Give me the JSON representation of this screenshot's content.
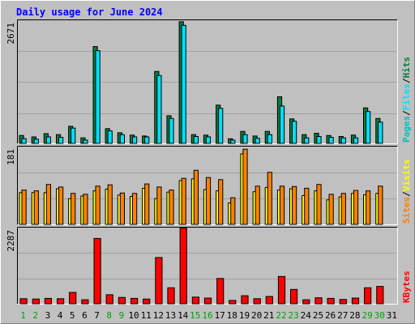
{
  "title": "Daily usage for June 2024",
  "colors": {
    "background": "#c0c0c0",
    "title": "#0000ff",
    "hits": "#008040",
    "files": "#00e0ff",
    "pages": "#00c0c0",
    "visits": "#ffff00",
    "sites": "#ff8000",
    "kbytes": "#ff0000",
    "weekend_day": "#00a000",
    "weekday": "#000000",
    "frame_dark": "#808080",
    "grid": "#a0a0a0"
  },
  "chart_data": [
    {
      "type": "bar",
      "panel": "hits-files-pages",
      "ymax_label": "2671",
      "ylim": [
        0,
        2671
      ],
      "legend": [
        {
          "name": "Pages",
          "color_key": "pages"
        },
        {
          "name": "Files",
          "color_key": "files"
        },
        {
          "name": "Hits",
          "color_key": "hits"
        }
      ],
      "legend_separator": "/",
      "categories": [
        "1",
        "2",
        "3",
        "4",
        "5",
        "6",
        "7",
        "8",
        "9",
        "10",
        "11",
        "12",
        "13",
        "14",
        "15",
        "16",
        "17",
        "18",
        "19",
        "20",
        "21",
        "22",
        "23",
        "24",
        "25",
        "26",
        "27",
        "28",
        "29",
        "30",
        "31"
      ],
      "series": [
        {
          "name": "Hits",
          "values": [
            170,
            140,
            210,
            190,
            370,
            120,
            2100,
            320,
            230,
            180,
            160,
            1560,
            600,
            2640,
            190,
            180,
            830,
            100,
            260,
            160,
            260,
            1010,
            530,
            190,
            220,
            170,
            150,
            180,
            770,
            540,
            0
          ]
        },
        {
          "name": "Files",
          "values": [
            100,
            90,
            140,
            130,
            330,
            70,
            2010,
            270,
            190,
            140,
            140,
            1470,
            540,
            2560,
            150,
            140,
            760,
            70,
            190,
            110,
            190,
            810,
            480,
            120,
            150,
            130,
            120,
            120,
            690,
            460,
            0
          ]
        }
      ]
    },
    {
      "type": "bar",
      "panel": "visits-sites",
      "ymax_label": "181",
      "ylim": [
        0,
        181
      ],
      "legend": [
        {
          "name": "Sites",
          "color_key": "sites"
        },
        {
          "name": "Visits",
          "color_key": "visits"
        }
      ],
      "legend_separator": "/",
      "categories": [
        "1",
        "2",
        "3",
        "4",
        "5",
        "6",
        "7",
        "8",
        "9",
        "10",
        "11",
        "12",
        "13",
        "14",
        "15",
        "16",
        "17",
        "18",
        "19",
        "20",
        "21",
        "22",
        "23",
        "24",
        "25",
        "26",
        "27",
        "28",
        "29",
        "30",
        "31"
      ],
      "series": [
        {
          "name": "Visits",
          "values": [
            74,
            74,
            74,
            83,
            60,
            66,
            78,
            82,
            68,
            65,
            84,
            60,
            75,
            102,
            106,
            81,
            78,
            50,
            164,
            76,
            86,
            80,
            83,
            67,
            78,
            57,
            64,
            72,
            69,
            72,
            0
          ]
        },
        {
          "name": "Sites",
          "values": [
            80,
            78,
            93,
            87,
            72,
            70,
            89,
            92,
            73,
            72,
            94,
            87,
            80,
            107,
            126,
            109,
            104,
            62,
            175,
            89,
            121,
            89,
            88,
            84,
            93,
            70,
            72,
            79,
            78,
            89,
            0
          ]
        }
      ]
    },
    {
      "type": "bar",
      "panel": "kbytes",
      "ymax_label": "2287",
      "ylim": [
        0,
        2287
      ],
      "legend": [
        {
          "name": "KBytes",
          "color_key": "kbytes"
        }
      ],
      "categories": [
        "1",
        "2",
        "3",
        "4",
        "5",
        "6",
        "7",
        "8",
        "9",
        "10",
        "11",
        "12",
        "13",
        "14",
        "15",
        "16",
        "17",
        "18",
        "19",
        "20",
        "21",
        "22",
        "23",
        "24",
        "25",
        "26",
        "27",
        "28",
        "29",
        "30",
        "31"
      ],
      "series": [
        {
          "name": "KBytes",
          "values": [
            150,
            140,
            160,
            150,
            340,
            120,
            1960,
            270,
            190,
            160,
            140,
            1390,
            480,
            2280,
            200,
            170,
            760,
            100,
            240,
            150,
            220,
            820,
            430,
            120,
            180,
            160,
            130,
            170,
            480,
            520,
            0
          ]
        }
      ]
    }
  ],
  "days": [
    {
      "label": "1",
      "weekend": true
    },
    {
      "label": "2",
      "weekend": true
    },
    {
      "label": "3",
      "weekend": false
    },
    {
      "label": "4",
      "weekend": false
    },
    {
      "label": "5",
      "weekend": false
    },
    {
      "label": "6",
      "weekend": false
    },
    {
      "label": "7",
      "weekend": false
    },
    {
      "label": "8",
      "weekend": true
    },
    {
      "label": "9",
      "weekend": true
    },
    {
      "label": "10",
      "weekend": false
    },
    {
      "label": "11",
      "weekend": false
    },
    {
      "label": "12",
      "weekend": false
    },
    {
      "label": "13",
      "weekend": false
    },
    {
      "label": "14",
      "weekend": false
    },
    {
      "label": "15",
      "weekend": true
    },
    {
      "label": "16",
      "weekend": true
    },
    {
      "label": "17",
      "weekend": false
    },
    {
      "label": "18",
      "weekend": false
    },
    {
      "label": "19",
      "weekend": false
    },
    {
      "label": "20",
      "weekend": false
    },
    {
      "label": "21",
      "weekend": false
    },
    {
      "label": "22",
      "weekend": true
    },
    {
      "label": "23",
      "weekend": true
    },
    {
      "label": "24",
      "weekend": false
    },
    {
      "label": "25",
      "weekend": false
    },
    {
      "label": "26",
      "weekend": false
    },
    {
      "label": "27",
      "weekend": false
    },
    {
      "label": "28",
      "weekend": false
    },
    {
      "label": "29",
      "weekend": true
    },
    {
      "label": "30",
      "weekend": true
    },
    {
      "label": "31",
      "weekend": false
    }
  ]
}
